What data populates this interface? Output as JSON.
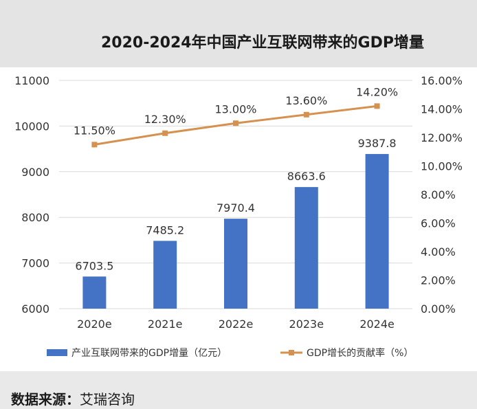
{
  "title": "2020-2024年中国产业互联网带来的GDP增量",
  "source": {
    "label": "数据来源：",
    "value": "艾瑞咨询"
  },
  "chart_data": {
    "type": "bar+line",
    "title": "2020-2024年中国产业互联网带来的GDP增量",
    "categories": [
      "2020e",
      "2021e",
      "2022e",
      "2023e",
      "2024e"
    ],
    "series": [
      {
        "name": "产业互联网带来的GDP增量（亿元）",
        "type": "bar",
        "axis": "left",
        "values": [
          6703.5,
          7485.2,
          7970.4,
          8663.6,
          9387.8
        ],
        "labels": [
          "6703.5",
          "7485.2",
          "7970.4",
          "8663.6",
          "9387.8"
        ],
        "color": "#4472c4"
      },
      {
        "name": "GDP增长的贡献率（%）",
        "type": "line",
        "axis": "right",
        "values": [
          11.5,
          12.3,
          13.0,
          13.6,
          14.2
        ],
        "labels": [
          "11.50%",
          "12.30%",
          "13.00%",
          "13.60%",
          "14.20%"
        ],
        "color": "#d4914f"
      }
    ],
    "y_left": {
      "min": 6000,
      "max": 11000,
      "ticks": [
        6000,
        7000,
        8000,
        9000,
        10000,
        11000
      ],
      "tick_labels": [
        "6000",
        "7000",
        "8000",
        "9000",
        "10000",
        "11000"
      ]
    },
    "y_right": {
      "min": 0,
      "max": 16,
      "ticks": [
        0,
        2,
        4,
        6,
        8,
        10,
        12,
        14,
        16
      ],
      "tick_labels": [
        "0.00%",
        "2.00%",
        "4.00%",
        "6.00%",
        "8.00%",
        "10.00%",
        "12.00%",
        "14.00%",
        "16.00%"
      ]
    },
    "grid": true,
    "legend": "bottom"
  }
}
